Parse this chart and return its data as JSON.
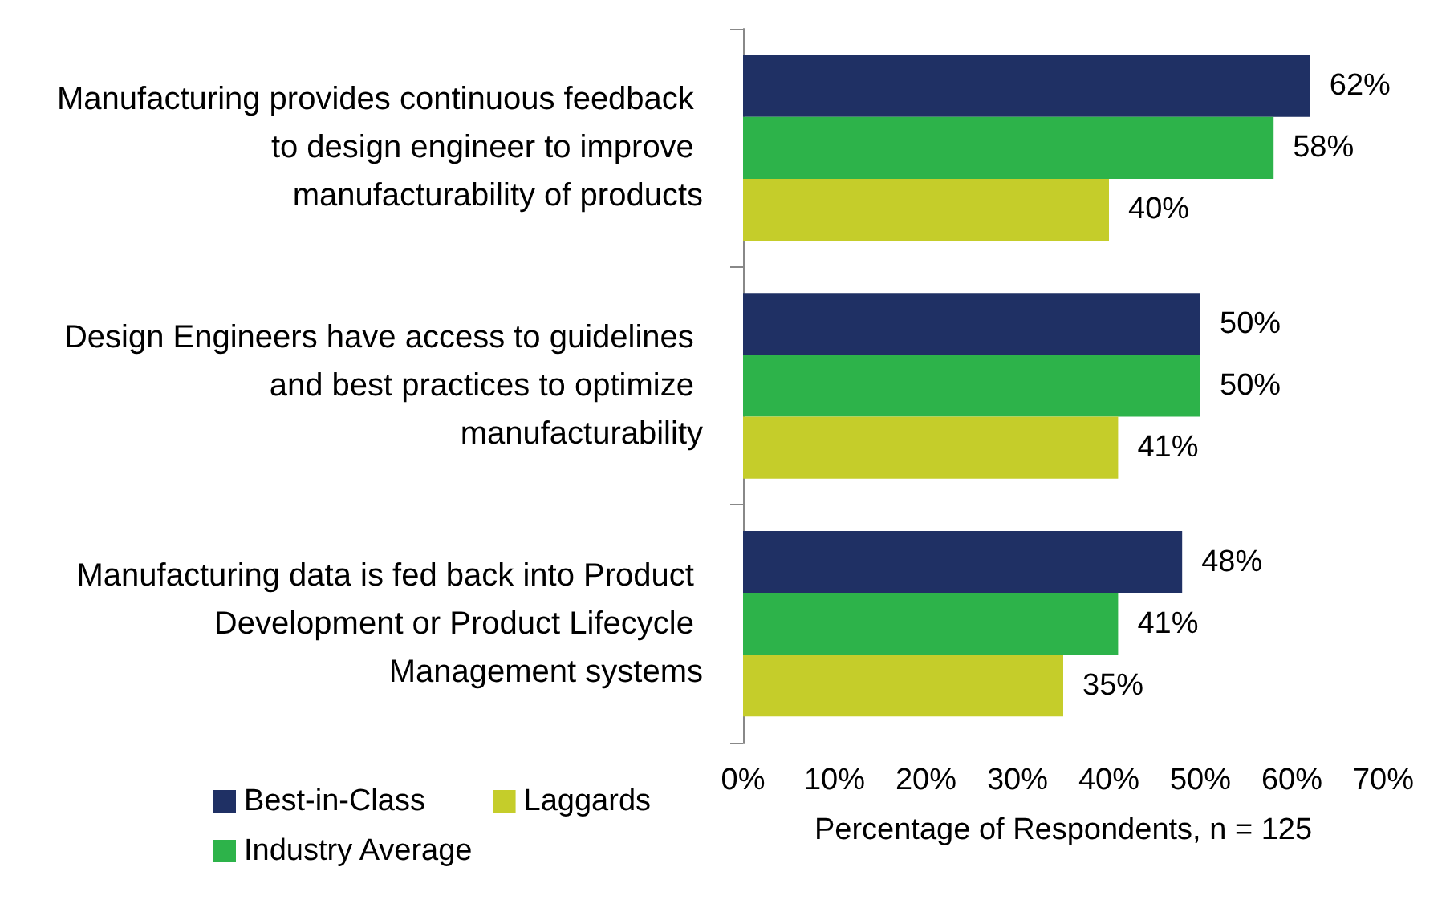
{
  "chart_data": {
    "type": "bar",
    "orientation": "horizontal",
    "xlabel": "Percentage of Respondents, n = 125",
    "categories": [
      "Manufacturing provides continuous feedback to design engineer to improve manufacturability of products",
      "Design Engineers have access to guidelines and best practices to optimize manufacturability",
      "Manufacturing data is fed back into Product Development or Product Lifecycle Management systems"
    ],
    "series": [
      {
        "name": "Best-in-Class",
        "color": "#1f3064",
        "values": [
          62,
          50,
          48
        ],
        "value_labels": [
          "62%",
          "50%",
          "48%"
        ]
      },
      {
        "name": "Industry Average",
        "color": "#2db34a",
        "values": [
          58,
          50,
          41
        ],
        "value_labels": [
          "58%",
          "50%",
          "41%"
        ]
      },
      {
        "name": "Laggards",
        "color": "#c5cd2a",
        "values": [
          40,
          41,
          35
        ],
        "value_labels": [
          "40%",
          "41%",
          "35%"
        ]
      }
    ],
    "xlim": [
      0,
      70
    ],
    "xticks": [
      {
        "value": 0,
        "label": "0%"
      },
      {
        "value": 10,
        "label": "10%"
      },
      {
        "value": 20,
        "label": "20%"
      },
      {
        "value": 30,
        "label": "30%"
      },
      {
        "value": 40,
        "label": "40%"
      },
      {
        "value": 50,
        "label": "50%"
      },
      {
        "value": 60,
        "label": "60%"
      },
      {
        "value": 70,
        "label": "70%"
      }
    ],
    "grid": false,
    "legend": "bottom left"
  }
}
